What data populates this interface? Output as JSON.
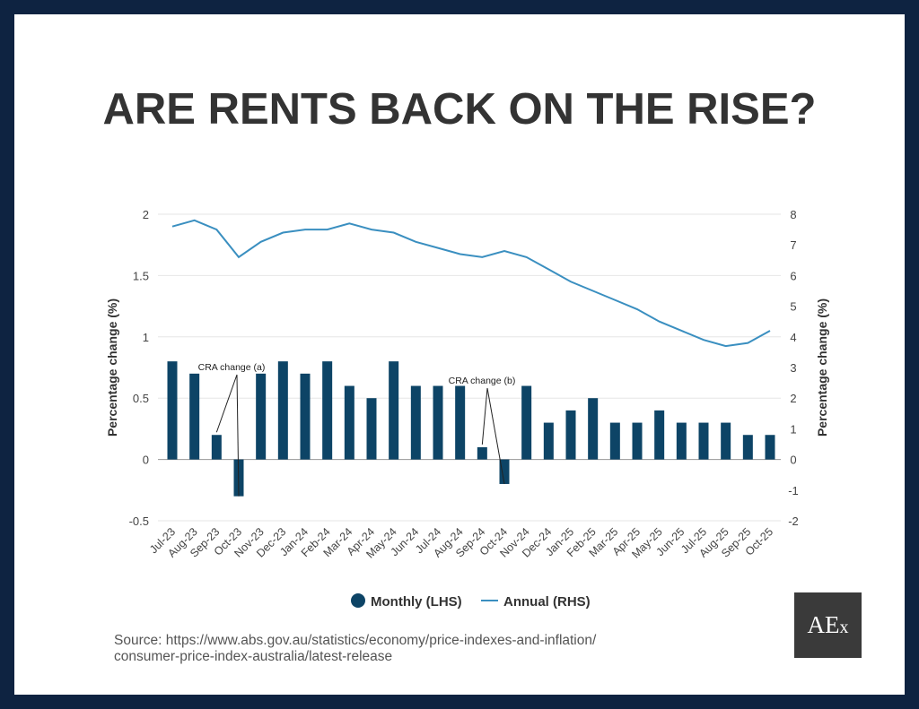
{
  "title": "ARE RENTS BACK ON THE RISE?",
  "source_line1": "Source: https://www.abs.gov.au/statistics/economy/price-indexes-and-inflation/",
  "source_line2": "consumer-price-index-australia/latest-release",
  "logo_text": "AEx",
  "chart_data": {
    "type": "bar+line",
    "categories": [
      "Jul-23",
      "Aug-23",
      "Sep-23",
      "Oct-23",
      "Nov-23",
      "Dec-23",
      "Jan-24",
      "Feb-24",
      "Mar-24",
      "Apr-24",
      "May-24",
      "Jun-24",
      "Jul-24",
      "Aug-24",
      "Sep-24",
      "Oct-24",
      "Nov-24",
      "Dec-24",
      "Jan-25",
      "Feb-25",
      "Mar-25",
      "Apr-25",
      "May-25",
      "Jun-25",
      "Jul-25",
      "Aug-25",
      "Sep-25",
      "Oct-25"
    ],
    "series": [
      {
        "name": "Monthly (LHS)",
        "type": "bar",
        "axis": "left",
        "color": "#0d4466",
        "values": [
          0.8,
          0.7,
          0.2,
          -0.3,
          0.7,
          0.8,
          0.7,
          0.8,
          0.6,
          0.5,
          0.8,
          0.6,
          0.6,
          0.6,
          0.1,
          -0.2,
          0.6,
          0.3,
          0.4,
          0.5,
          0.3,
          0.3,
          0.4,
          0.3,
          0.3,
          0.3,
          0.2,
          0.2
        ]
      },
      {
        "name": "Annual (RHS)",
        "type": "line",
        "axis": "right",
        "color": "#3a8fc0",
        "values": [
          7.6,
          7.8,
          7.5,
          6.6,
          7.1,
          7.4,
          7.5,
          7.5,
          7.7,
          7.5,
          7.4,
          7.1,
          6.9,
          6.7,
          6.6,
          6.8,
          6.6,
          6.2,
          5.8,
          5.5,
          5.2,
          4.9,
          4.5,
          4.2,
          3.9,
          3.7,
          3.8,
          4.2
        ]
      }
    ],
    "ylabel_left": "Percentage change (%)",
    "ylabel_right": "Percentage change (%)",
    "ylim_left": [
      -0.5,
      2
    ],
    "ylim_right": [
      -2,
      8
    ],
    "yticks_left": [
      "2",
      "1.5",
      "1",
      "0.5",
      "0",
      "-0.5"
    ],
    "yticks_right": [
      "8",
      "7",
      "6",
      "5",
      "4",
      "3",
      "2",
      "1",
      "0",
      "-1",
      "-2"
    ],
    "grid": true,
    "legend_position": "bottom",
    "annotations": [
      {
        "text": "CRA change (a)",
        "points_to": [
          "Sep-23",
          "Oct-23"
        ]
      },
      {
        "text": "CRA change (b)",
        "points_to": [
          "Sep-24",
          "Oct-24"
        ]
      }
    ]
  }
}
